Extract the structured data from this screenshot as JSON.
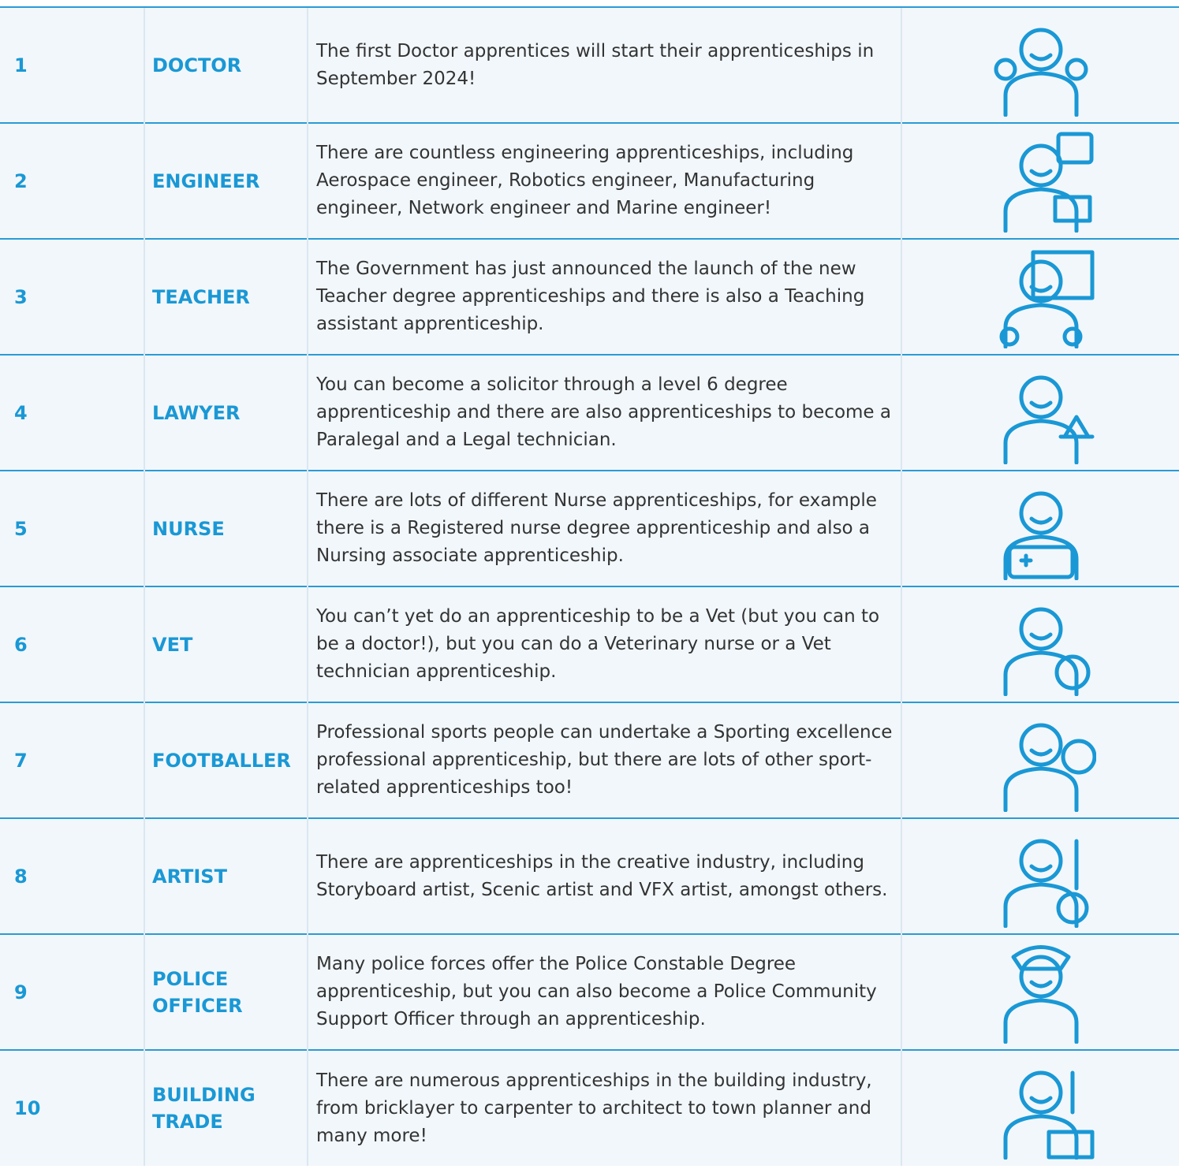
{
  "table": {
    "rows": [
      [
        1,
        "DOCTOR",
        "The first Doctor apprentices will start their apprenticeships in September 2024!"
      ],
      [
        2,
        "ENGINEER",
        "There are countless engineering apprenticeships, including Aerospace engineer, Robotics engineer, Manufacturing engineer, Network engineer and Marine engineer!"
      ],
      [
        3,
        "TEACHER",
        "The Government has just announced the launch of the new Teacher degree apprenticeships and there is also a Teaching assistant apprenticeship."
      ],
      [
        4,
        "LAWYER",
        "You can become a solicitor through a level 6 degree apprenticeship and there are also apprenticeships to become a Paralegal and a Legal technician."
      ],
      [
        5,
        "NURSE",
        "There are lots of different Nurse apprenticeships, for example there is a Registered nurse degree apprenticeship and also a Nursing associate apprenticeship."
      ],
      [
        6,
        "VET",
        "You can’t yet do an apprenticeship to be a Vet (but you can to be a doctor!), but you can do a Veterinary nurse or a Vet technician apprenticeship."
      ],
      [
        7,
        "FOOTBALLER",
        "Professional sports people can undertake a Sporting excellence professional apprenticeship, but there are lots of other sport-related apprenticeships too!"
      ],
      [
        8,
        "ARTIST",
        "There are apprenticeships in the creative industry, including Storyboard artist, Scenic artist and VFX artist, amongst others."
      ],
      [
        9,
        "POLICE OFFICER",
        "Many police forces offer the Police Constable Degree apprenticeship, but you can also become a Police Community Support Officer through an apprenticeship."
      ],
      [
        10,
        "BUILDING TRADE",
        "There are numerous apprenticeships in the building industry, from bricklayer to carpenter to architect to town planner and many more!"
      ]
    ]
  }
}
